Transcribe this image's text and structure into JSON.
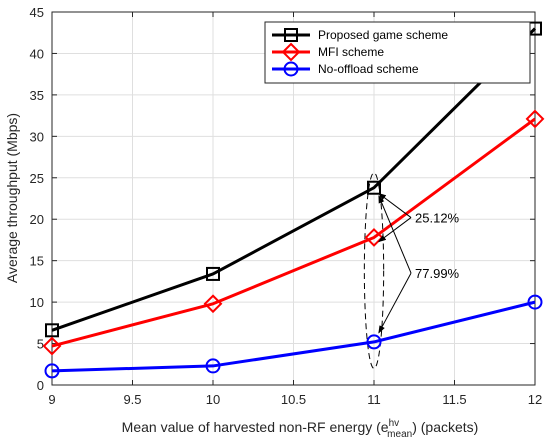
{
  "chart_data": {
    "type": "line",
    "xlabel": {
      "main": "Mean value of harvested non-RF energy (e",
      "sup": "hv",
      "sub": "mean",
      "tail": ") (packets)"
    },
    "ylabel": "Average throughput (Mbps)",
    "xlim": [
      9,
      12
    ],
    "ylim": [
      0,
      45
    ],
    "xticks": [
      9,
      9.5,
      10,
      10.5,
      11,
      11.5,
      12
    ],
    "xtick_labels": [
      "9",
      "9.5",
      "10",
      "10.5",
      "11",
      "11.5",
      "12"
    ],
    "yticks": [
      0,
      5,
      10,
      15,
      20,
      25,
      30,
      35,
      40,
      45
    ],
    "ytick_labels": [
      "0",
      "5",
      "10",
      "15",
      "20",
      "25",
      "30",
      "35",
      "40",
      "45"
    ],
    "grid": true,
    "legend_position": "top-right",
    "x": [
      9,
      10,
      11,
      12
    ],
    "series": [
      {
        "name": "Proposed game scheme",
        "color": "#000000",
        "marker": "square",
        "values": [
          6.6,
          13.4,
          23.8,
          43.0
        ]
      },
      {
        "name": "MFI scheme",
        "color": "#ff0000",
        "marker": "diamond",
        "values": [
          4.7,
          9.8,
          17.8,
          32.1
        ]
      },
      {
        "name": "No-offload scheme",
        "color": "#0000ff",
        "marker": "circle",
        "values": [
          1.7,
          2.3,
          5.2,
          10.0
        ]
      }
    ],
    "annotations": [
      {
        "text": "25.12%",
        "text_x": 11.23,
        "text_y": 20.2,
        "targets": [
          [
            11.03,
            23.1
          ],
          [
            11.03,
            17.3
          ]
        ]
      },
      {
        "text": "77.99%",
        "text_x": 11.23,
        "text_y": 13.5,
        "targets": [
          [
            11.03,
            22.8
          ],
          [
            11.03,
            6.3
          ]
        ]
      }
    ],
    "ellipse": {
      "cx": 11.0,
      "cy": 13.8,
      "rx": 0.06,
      "ry": 11.8
    }
  }
}
